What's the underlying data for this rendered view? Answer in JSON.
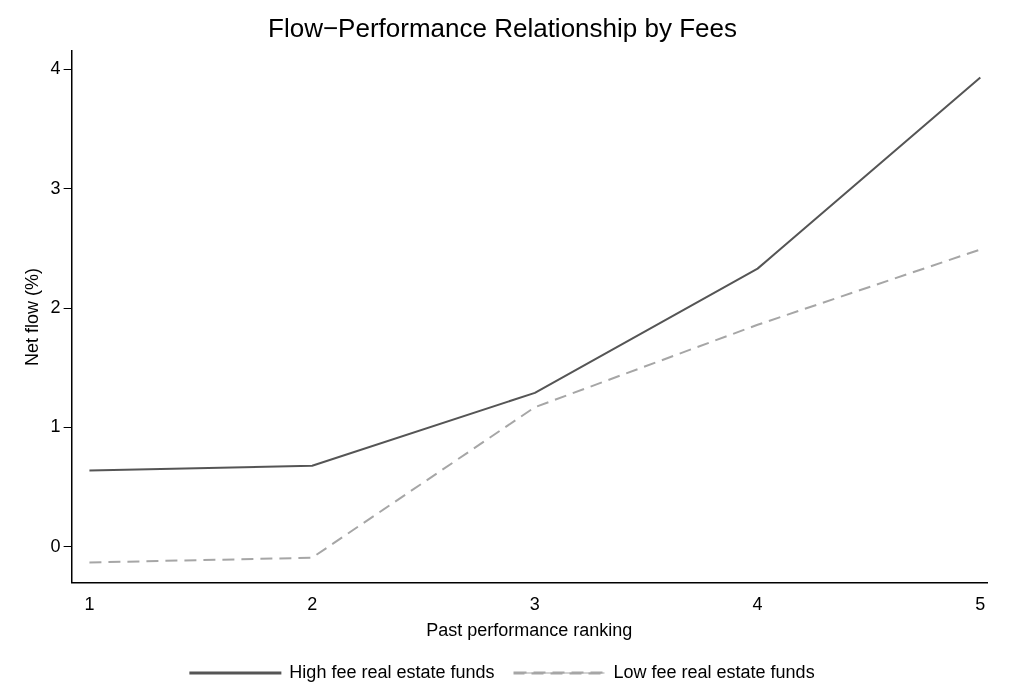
{
  "chart_data": {
    "type": "line",
    "title": "Flow−Performance Relationship by Fees",
    "xlabel": "Past performance ranking",
    "ylabel": "Net flow (%)",
    "x": [
      1,
      2,
      3,
      4,
      5
    ],
    "series": [
      {
        "name": "High fee real estate funds",
        "color": "#555555",
        "line_style": "solid",
        "values": [
          0.64,
          0.68,
          1.29,
          2.33,
          3.93
        ]
      },
      {
        "name": "Low fee real estate funds",
        "color": "#a6a6a6",
        "line_style": "dashed",
        "values": [
          -0.13,
          -0.09,
          1.17,
          1.86,
          2.49
        ]
      }
    ],
    "xlim": [
      0.92,
      5.03
    ],
    "xticks": [
      1,
      2,
      3,
      4,
      5
    ],
    "ylim": [
      -0.3,
      4.15
    ],
    "yticks": [
      0,
      1,
      2,
      3,
      4
    ],
    "grid": false,
    "legend": "bottom",
    "marker": "none"
  }
}
